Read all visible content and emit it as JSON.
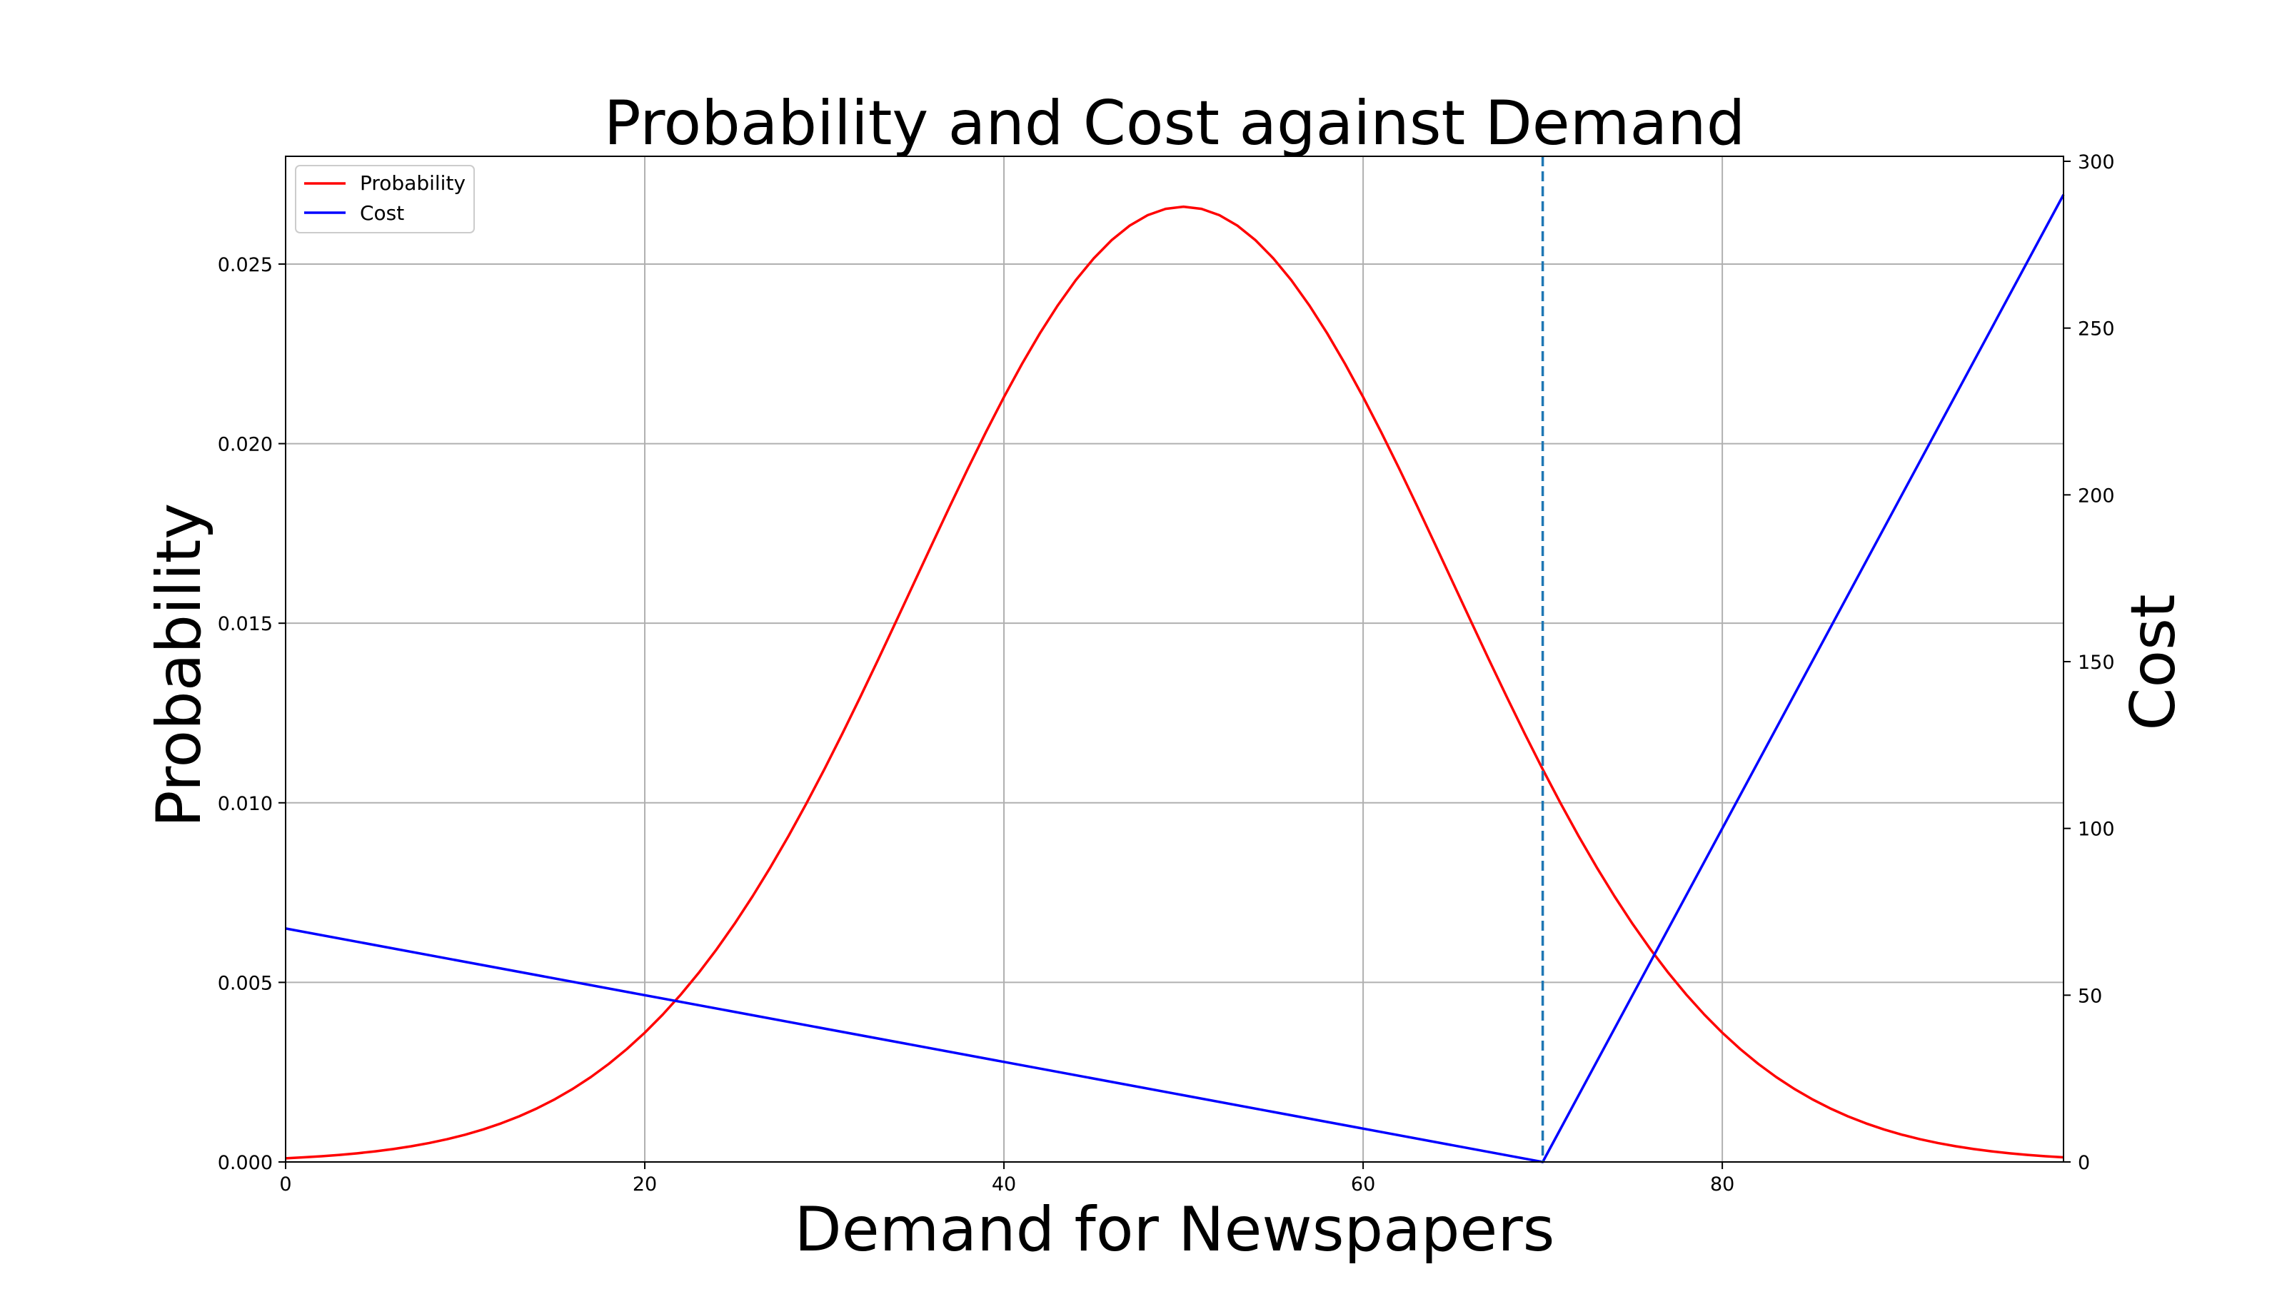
{
  "chart_data": {
    "type": "line",
    "title": "Probability and Cost against Demand",
    "xlabel": "Demand for Newspapers",
    "ylabel_left": "Probability",
    "ylabel_right": "Cost",
    "xlim": [
      0,
      99
    ],
    "ylim_left": [
      0,
      0.028
    ],
    "ylim_right": [
      0,
      301.5
    ],
    "x_ticks": [
      0,
      20,
      40,
      60,
      80
    ],
    "x_tick_labels": [
      "0",
      "20",
      "40",
      "60",
      "80"
    ],
    "y_left_ticks": [
      0,
      0.005,
      0.01,
      0.015,
      0.02,
      0.025
    ],
    "y_left_tick_labels": [
      "0.000",
      "0.005",
      "0.010",
      "0.015",
      "0.020",
      "0.025"
    ],
    "y_right_ticks": [
      0,
      50,
      100,
      150,
      200,
      250,
      300
    ],
    "y_right_tick_labels": [
      "0",
      "50",
      "100",
      "150",
      "200",
      "250",
      "300"
    ],
    "grid": true,
    "legend_position": "top-left",
    "series": [
      {
        "name": "Probability",
        "axis": "left",
        "color": "#ff0000",
        "distribution": {
          "kind": "normal",
          "mean": 50,
          "std": 15
        },
        "x_range": [
          0,
          99
        ]
      },
      {
        "name": "Cost",
        "axis": "right",
        "color": "#0000ff",
        "x": [
          0,
          70,
          99
        ],
        "y": [
          70,
          0,
          290
        ]
      }
    ],
    "reference_line": {
      "x": 70,
      "style": "dashed",
      "color": "#1f77b4"
    }
  }
}
